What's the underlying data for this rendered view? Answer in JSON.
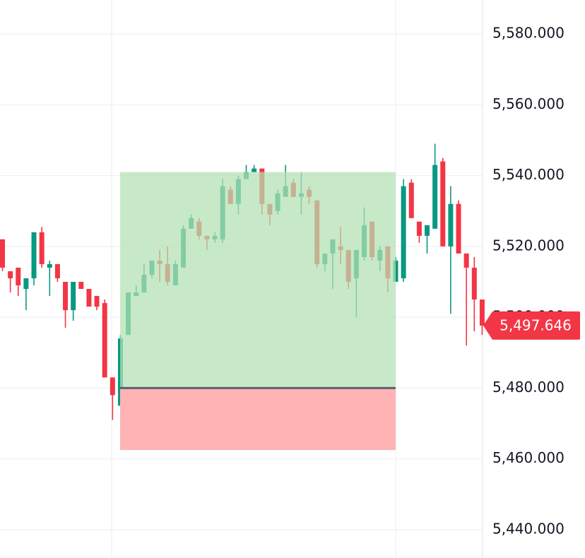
{
  "chart_data": {
    "type": "candlestick",
    "open": [
      5522,
      5513,
      5514,
      5508,
      5511,
      5524,
      5514,
      5515,
      5510,
      5502,
      5510,
      5508,
      5506,
      5504,
      5483,
      5475,
      5495,
      5506,
      5507,
      5512,
      5516,
      5515,
      5509,
      5514,
      5525,
      5527,
      5523,
      5522,
      5522,
      5536,
      5532,
      5539,
      5541,
      5542,
      5532,
      5530,
      5534,
      5538,
      5534,
      5536,
      5533,
      5515,
      5518,
      5520,
      5519,
      5511,
      5517,
      5527,
      5516,
      5520,
      5510,
      5511,
      5538,
      5527,
      5523,
      5525,
      5544,
      5520,
      5532,
      5518,
      5514,
      5505
    ],
    "high": [
      5522,
      5513,
      5514,
      5511,
      5524,
      5525.5,
      5516,
      5515,
      5510,
      5510,
      5510,
      5508,
      5506,
      5505,
      5483,
      5495,
      5507,
      5509,
      5515,
      5516,
      5519,
      5520,
      5516,
      5526,
      5529,
      5528,
      5523,
      5524,
      5539,
      5537,
      5540,
      5543,
      5543,
      5542,
      5532,
      5536,
      5543,
      5539,
      5541,
      5537,
      5533,
      5518,
      5522,
      5525.5,
      5519,
      5519,
      5531,
      5527,
      5520,
      5520,
      5517,
      5539,
      5539,
      5527,
      5526,
      5549,
      5545,
      5537,
      5533,
      5518,
      5517,
      5505
    ],
    "low": [
      5513,
      5507,
      5506,
      5502,
      5509,
      5514,
      5506,
      5510,
      5497,
      5499,
      5508,
      5504,
      5502,
      5483,
      5471,
      5475,
      5495,
      5506,
      5507,
      5511,
      5510,
      5509,
      5509,
      5514,
      5525,
      5522,
      5519,
      5521,
      5521,
      5532,
      5529,
      5539,
      5541,
      5529,
      5526,
      5529,
      5534,
      5534,
      5529,
      5532,
      5514,
      5513,
      5508,
      5515,
      5508,
      5500,
      5516,
      5516,
      5513,
      5507,
      5510,
      5510,
      5528,
      5521,
      5518,
      5525,
      5520,
      5501,
      5518,
      5492,
      5496,
      5495
    ],
    "close": [
      5514,
      5511,
      5509,
      5511,
      5524,
      5515,
      5515,
      5511,
      5502,
      5510,
      5508,
      5503,
      5503,
      5483,
      5478,
      5494,
      5507,
      5507,
      5512,
      5516,
      5515,
      5510,
      5515,
      5525,
      5528,
      5523,
      5522,
      5523,
      5537,
      5532,
      5539,
      5541,
      5542,
      5532,
      5529,
      5535,
      5537,
      5534,
      5535,
      5534,
      5515,
      5518,
      5522,
      5519,
      5510,
      5519,
      5526,
      5517,
      5519,
      5511,
      5516,
      5537,
      5528,
      5523,
      5526,
      5543,
      5520,
      5532,
      5518,
      5514,
      5505,
      5497.646
    ],
    "up_color": "#089981",
    "down_color": "#f23645",
    "last_price": {
      "value": 5497.646,
      "label": "5,497.646",
      "color": "#f23645"
    },
    "position": {
      "target": 5541,
      "entry": 5480,
      "stop": 5462.5,
      "profit_color": "#b3e0b1",
      "loss_color": "#ffb3b5",
      "entry_color": "#5d606b"
    },
    "ylim": [
      5432,
      5589.6
    ],
    "yticks": [
      {
        "value": 5440,
        "label": "5,440.000"
      },
      {
        "value": 5460,
        "label": "5,460.000"
      },
      {
        "value": 5480,
        "label": "5,480.000"
      },
      {
        "value": 5500,
        "label": "5,500.000"
      },
      {
        "value": 5520,
        "label": "5,520.000"
      },
      {
        "value": 5540,
        "label": "5,540.000"
      },
      {
        "value": 5560,
        "label": "5,560.000"
      },
      {
        "value": 5580,
        "label": "5,580.000"
      }
    ],
    "grid": true
  }
}
